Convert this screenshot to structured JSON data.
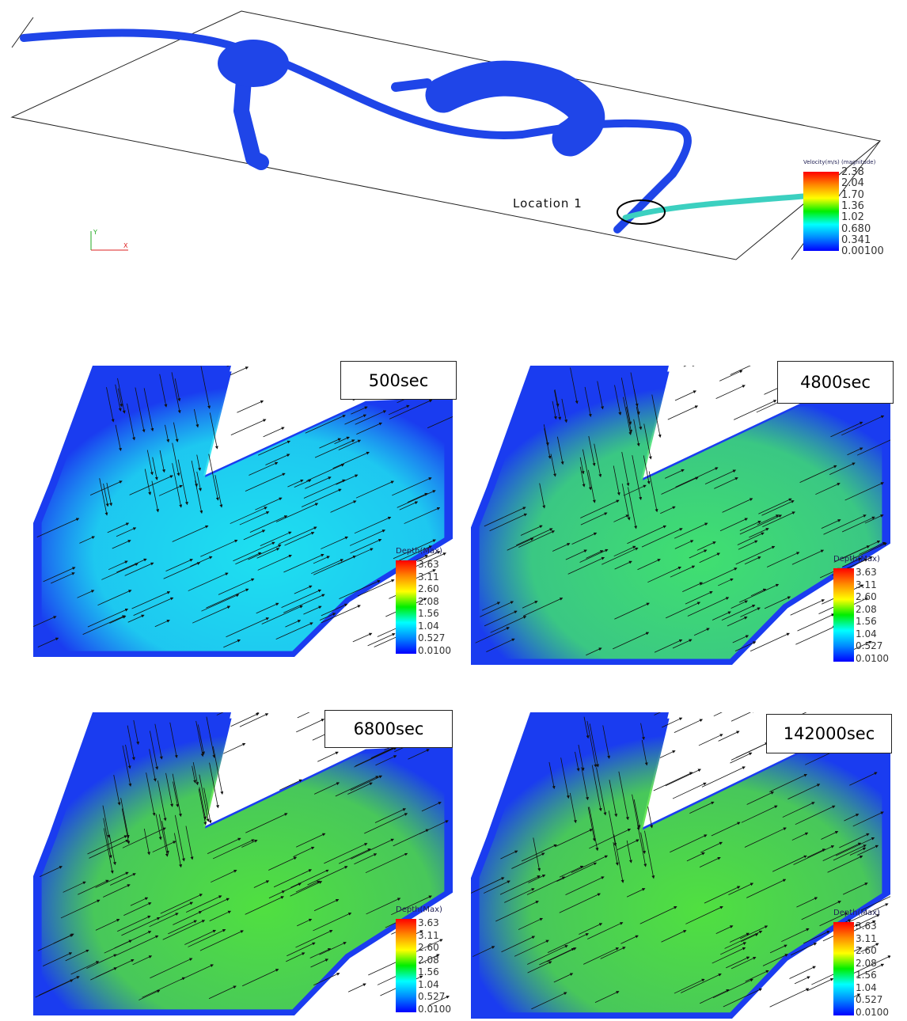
{
  "overview": {
    "location_label": "Location 1",
    "axis_labels": {
      "y": "Y",
      "x": "X"
    },
    "legend": {
      "title": "Velocity(m/s) (magnitude)",
      "ticks": [
        "2.38",
        "2.04",
        "1.70",
        "1.36",
        "1.02",
        "0.680",
        "0.341",
        "0.00100"
      ]
    }
  },
  "panels": [
    {
      "time_label": "500sec",
      "tint": "#1ee0f0"
    },
    {
      "time_label": "4800sec",
      "tint": "#40e070"
    },
    {
      "time_label": "6800sec",
      "tint": "#50e040"
    },
    {
      "time_label": "142000sec",
      "tint": "#50e040"
    }
  ],
  "depth_legend": {
    "title": "Depth(Max)",
    "ticks": [
      "3.63",
      "3.11",
      "2.60",
      "2.08",
      "1.56",
      "1.04",
      "0.527",
      "0.0100"
    ]
  },
  "colors": {
    "water_low": "#0a3cf0",
    "water_high": "#ff0000"
  }
}
